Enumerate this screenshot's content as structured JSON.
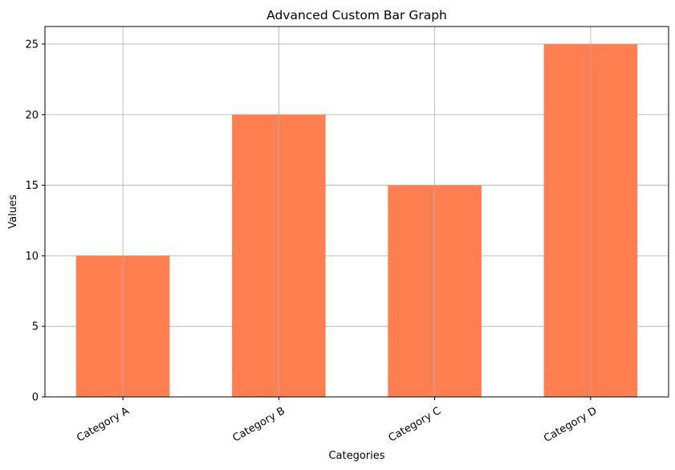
{
  "chart_data": {
    "type": "bar",
    "title": "Advanced Custom Bar Graph",
    "xlabel": "Categories",
    "ylabel": "Values",
    "categories": [
      "Category A",
      "Category B",
      "Category C",
      "Category D"
    ],
    "values": [
      10,
      20,
      15,
      25
    ],
    "ylim": [
      0,
      26.25
    ],
    "yticks": [
      0,
      5,
      10,
      15,
      20,
      25
    ],
    "bar_color": "#ff7f50",
    "grid": true,
    "grid_color": "#b0b0b0",
    "xtick_rotation": "30 degrees",
    "legend": "none"
  }
}
